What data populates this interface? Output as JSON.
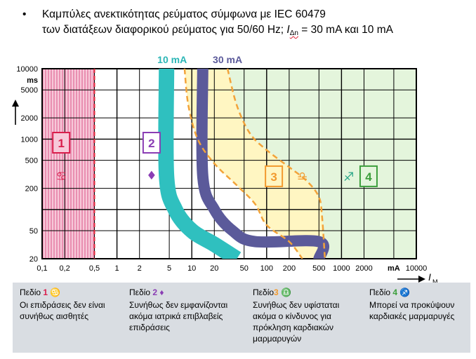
{
  "title": {
    "bullet": "•",
    "line1": "Καμπύλες ανεκτικότητας ρεύματος σύμφωνα με IEC 60479",
    "line2_pre": "των διατάξεων διαφορικού ρεύματος για 50/60 Hz; ",
    "line2_sym": "I",
    "line2_sub": "Δn",
    "line2_post": " = 30 mA και 10 mA"
  },
  "chart_data": {
    "type": "area",
    "x_scale": "log",
    "y_scale": "log",
    "xlim": [
      0.1,
      10000
    ],
    "ylim": [
      20,
      10000
    ],
    "x_unit": "mA",
    "y_unit": "ms",
    "x_axis_symbol": "I",
    "x_axis_symbol_sub": "M",
    "x_ticks": [
      0.1,
      0.2,
      0.5,
      1,
      2,
      5,
      10,
      20,
      50,
      100,
      200,
      500,
      1000,
      2000,
      10000
    ],
    "x_tick_labels": [
      "0,1",
      "0,2",
      "0,5",
      "1",
      "2",
      "5",
      "10",
      "20",
      "50",
      "100",
      "200",
      "500",
      "1000",
      "2000",
      "10000"
    ],
    "x_unit_label_at": 5000,
    "y_ticks": [
      20,
      50,
      200,
      500,
      1000,
      2000,
      5000,
      10000
    ],
    "y_tick_labels": [
      "20",
      "50",
      "200",
      "500",
      "1000",
      "2000",
      "5000",
      "10000"
    ],
    "grid_x": [
      0.2,
      0.5,
      1,
      2,
      5,
      10,
      20,
      50,
      100,
      200,
      500,
      1000,
      2000,
      5000
    ],
    "grid_y": [
      50,
      100,
      200,
      500,
      1000,
      2000,
      5000
    ],
    "curve_labels": [
      {
        "text": "10 mA",
        "x": 10,
        "color": "#2bb6b6"
      },
      {
        "text": "30 mA",
        "x": 30,
        "color": "#5b5a9a"
      }
    ],
    "zones": [
      {
        "id": "1",
        "color": "#d91d4b",
        "region": "x < 0.5 mA",
        "label_x": 0.18,
        "label_y": 900
      },
      {
        "id": "2",
        "color": "#8a3db4",
        "label_x": 2.9,
        "label_y": 900
      },
      {
        "id": "3",
        "color": "#f29a2e",
        "label_x": 125,
        "label_y": 300
      },
      {
        "id": "4",
        "color": "#3d9f3d",
        "label_x": 2300,
        "label_y": 300
      }
    ],
    "curve_10mA": [
      [
        4.6,
        10000
      ],
      [
        4.6,
        300
      ],
      [
        6,
        100
      ],
      [
        10,
        50
      ],
      [
        20,
        32
      ],
      [
        40,
        20
      ]
    ],
    "curve_30mA": [
      [
        14,
        10000
      ],
      [
        14,
        300
      ],
      [
        20,
        100
      ],
      [
        35,
        50
      ],
      [
        70,
        35
      ],
      [
        500,
        35
      ],
      [
        500,
        20
      ]
    ],
    "boundary_left": [
      [
        8,
        10000
      ],
      [
        9,
        3000
      ],
      [
        12,
        1000
      ],
      [
        20,
        450
      ],
      [
        40,
        220
      ],
      [
        70,
        120
      ],
      [
        100,
        60
      ],
      [
        200,
        35
      ],
      [
        300,
        20
      ]
    ],
    "boundary_right": [
      [
        30,
        10000
      ],
      [
        40,
        3000
      ],
      [
        60,
        1200
      ],
      [
        100,
        700
      ],
      [
        200,
        400
      ],
      [
        350,
        250
      ],
      [
        500,
        150
      ],
      [
        550,
        80
      ],
      [
        600,
        20
      ]
    ]
  },
  "legend": {
    "items": [
      {
        "head": "Πεδίο ",
        "num": "1",
        "desc": [
          "Οι επιδράσεις δεν είναι",
          "συνήθως αισθητές"
        ]
      },
      {
        "head": "Πεδίο ",
        "num": "2",
        "desc": [
          "Συνήθως δεν εμφανίζονται",
          "ακόμα ιατρικά επιβλαβείς",
          "επιδράσεις"
        ]
      },
      {
        "head": "Πεδίο",
        "num": "3",
        "desc": [
          "Συνήθως δεν υφίσταται",
          "ακόμα ο κίνδυνος για",
          "πρόκληση καρδιακών",
          "μαρμαρυγών"
        ]
      },
      {
        "head": "Πεδίο ",
        "num": "4",
        "desc": [
          "Μπορεί να προκύψουν",
          "καρδιακές μαρμαρυγές"
        ]
      }
    ]
  }
}
